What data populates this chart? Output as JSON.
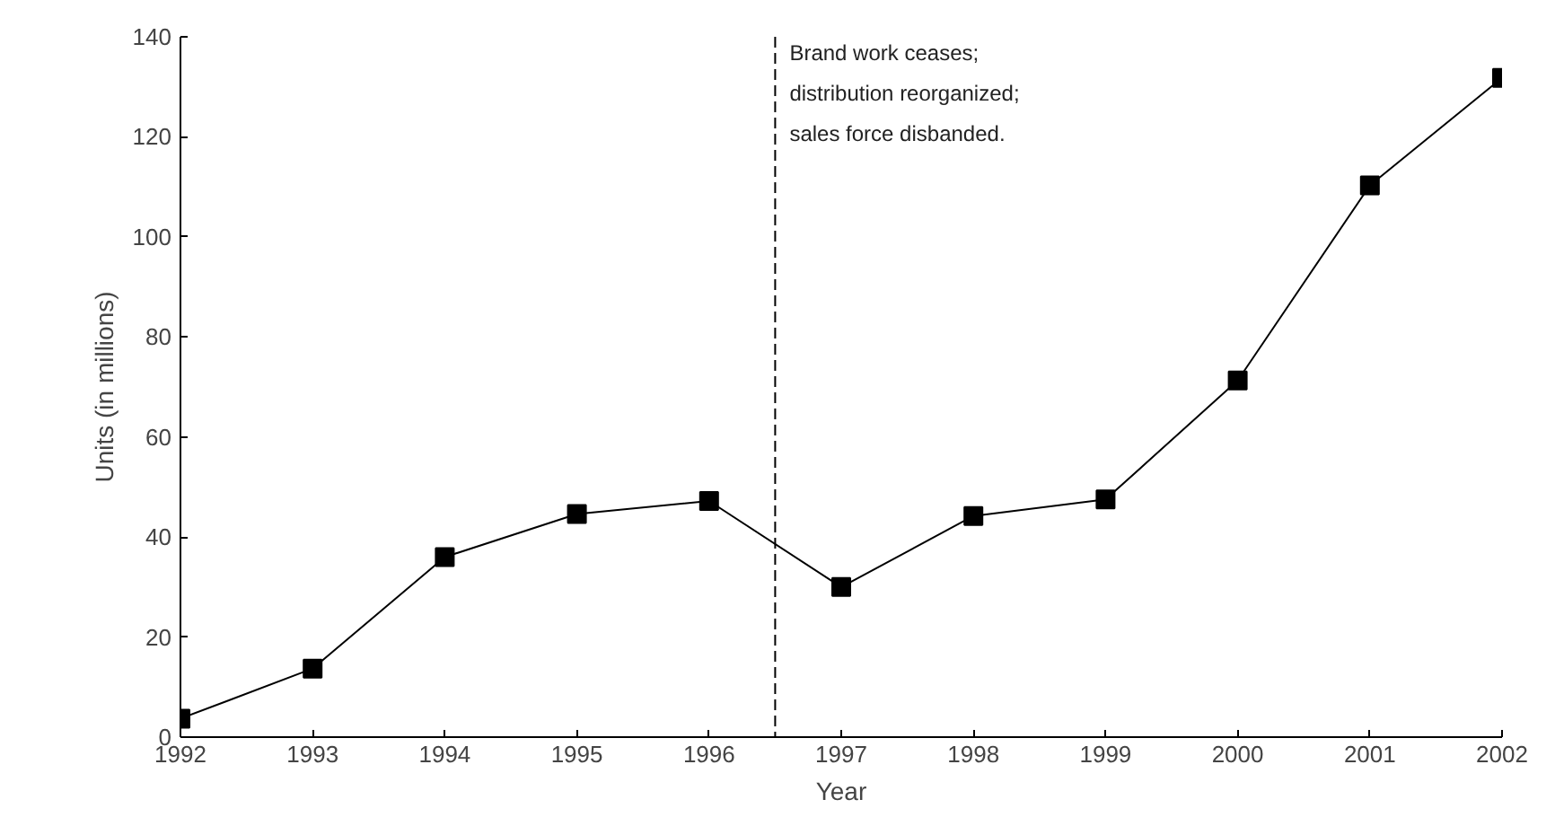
{
  "chart_data": {
    "type": "line",
    "xlabel": "Year",
    "ylabel": "Units (in millions)",
    "x": [
      1992,
      1993,
      1994,
      1995,
      1996,
      1997,
      1998,
      1999,
      2000,
      2001,
      2002
    ],
    "series": [
      {
        "color": "#000000",
        "values": [
          3.7,
          13.7,
          36,
          44.6,
          47.2,
          30,
          44.2,
          47.5,
          71.3,
          110.3,
          131.8
        ]
      }
    ],
    "xlim": [
      1992,
      2002
    ],
    "xticks": [
      1992,
      1993,
      1994,
      1995,
      1996,
      1997,
      1998,
      1999,
      2000,
      2001,
      2002
    ],
    "ylim": [
      0,
      140
    ],
    "yticks": [
      0,
      20,
      40,
      60,
      80,
      100,
      120,
      140
    ],
    "ref_lines": [
      {
        "axis": "x",
        "value": 1996.5,
        "label": "Brand work ceases;\ndistribution reorganized;\nsales force disbanded.",
        "color": "#000000",
        "line_style": "dashed"
      }
    ],
    "marker": "square",
    "line_style": "solid",
    "grid": false
  }
}
